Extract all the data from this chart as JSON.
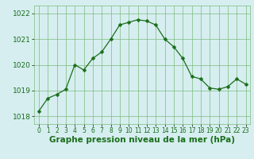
{
  "x": [
    0,
    1,
    2,
    3,
    4,
    5,
    6,
    7,
    8,
    9,
    10,
    11,
    12,
    13,
    14,
    15,
    16,
    17,
    18,
    19,
    20,
    21,
    22,
    23
  ],
  "y": [
    1018.2,
    1018.7,
    1018.85,
    1019.05,
    1020.0,
    1019.8,
    1020.25,
    1020.5,
    1021.0,
    1021.55,
    1021.65,
    1021.75,
    1021.7,
    1021.55,
    1021.0,
    1020.7,
    1020.25,
    1019.55,
    1019.45,
    1019.1,
    1019.05,
    1019.15,
    1019.45,
    1019.25
  ],
  "line_color": "#1a6e1a",
  "marker": "D",
  "marker_size": 2.5,
  "bg_color": "#d6eef0",
  "grid_color": "#7cbb7c",
  "xlabel": "Graphe pression niveau de la mer (hPa)",
  "xlabel_fontsize": 7.5,
  "xlabel_color": "#1a6e1a",
  "xlabel_weight": "bold",
  "tick_label_color": "#1a6e1a",
  "ytick_fontsize": 6.5,
  "xtick_fontsize": 5.5,
  "ylim": [
    1017.7,
    1022.3
  ],
  "xlim": [
    -0.5,
    23.5
  ],
  "yticks": [
    1018,
    1019,
    1020,
    1021,
    1022
  ],
  "xtick_labels": [
    "0",
    "1",
    "2",
    "3",
    "4",
    "5",
    "6",
    "7",
    "8",
    "9",
    "10",
    "11",
    "12",
    "13",
    "14",
    "15",
    "16",
    "17",
    "18",
    "19",
    "20",
    "21",
    "22",
    "23"
  ]
}
